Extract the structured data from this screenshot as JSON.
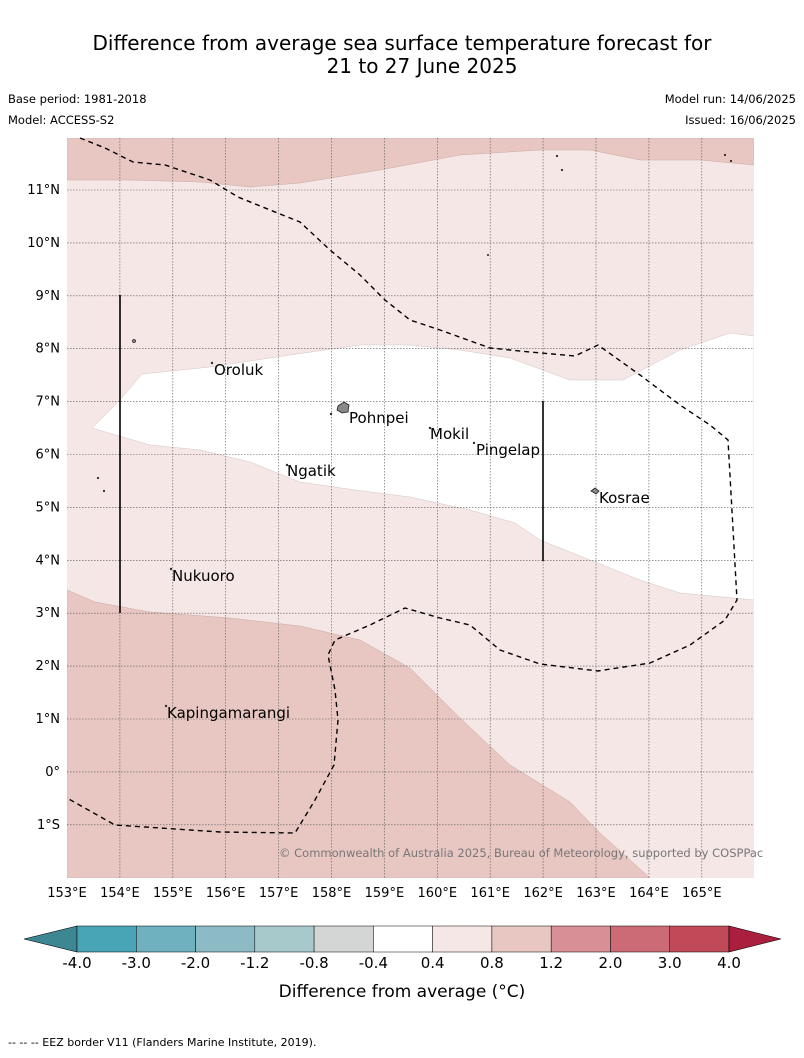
{
  "header": {
    "title_line1": "Difference from average sea surface temperature forecast for",
    "title_line2": "21 to 27 June 2025",
    "base_period": "Base period: 1981-2018",
    "model": "Model: ACCESS-S2",
    "model_run": "Model run: 14/06/2025",
    "issued": "Issued: 16/06/2025"
  },
  "map": {
    "lon_ticks": [
      "153°E",
      "154°E",
      "155°E",
      "156°E",
      "157°E",
      "158°E",
      "159°E",
      "160°E",
      "161°E",
      "162°E",
      "163°E",
      "164°E",
      "165°E"
    ],
    "lat_ticks": [
      "11°N",
      "10°N",
      "9°N",
      "8°N",
      "7°N",
      "6°N",
      "5°N",
      "4°N",
      "3°N",
      "2°N",
      "1°N",
      "0°",
      "1°S"
    ],
    "places": [
      {
        "name": "Oroluk"
      },
      {
        "name": "Pohnpei"
      },
      {
        "name": "Mokil"
      },
      {
        "name": "Pingelap"
      },
      {
        "name": "Ngatik"
      },
      {
        "name": "Kosrae"
      },
      {
        "name": "Nukuoro"
      },
      {
        "name": "Kapingamarangi"
      }
    ],
    "copyright": "© Commonwealth of Australia 2025, Bureau of Meteorology, supported by COSPPac"
  },
  "colorbar": {
    "ticks": [
      "-4.0",
      "-3.0",
      "-2.0",
      "-1.2",
      "-0.8",
      "-0.4",
      "0.4",
      "0.8",
      "1.2",
      "2.0",
      "3.0",
      "4.0"
    ],
    "colors": [
      "#48a5b5",
      "#6fb1bf",
      "#8dbbc5",
      "#a8c9cc",
      "#d3d6d5",
      "#ffffff",
      "#f5e7e5",
      "#e8c7c2",
      "#d98f96",
      "#cc6b75",
      "#c04a57"
    ],
    "low_extend_color": "#3d8793",
    "high_extend_color": "#a91f3d",
    "label": "Difference from average (°C)"
  },
  "footnote": "-- -- -- EEZ border V11 (Flanders Marine Institute, 2019)."
}
